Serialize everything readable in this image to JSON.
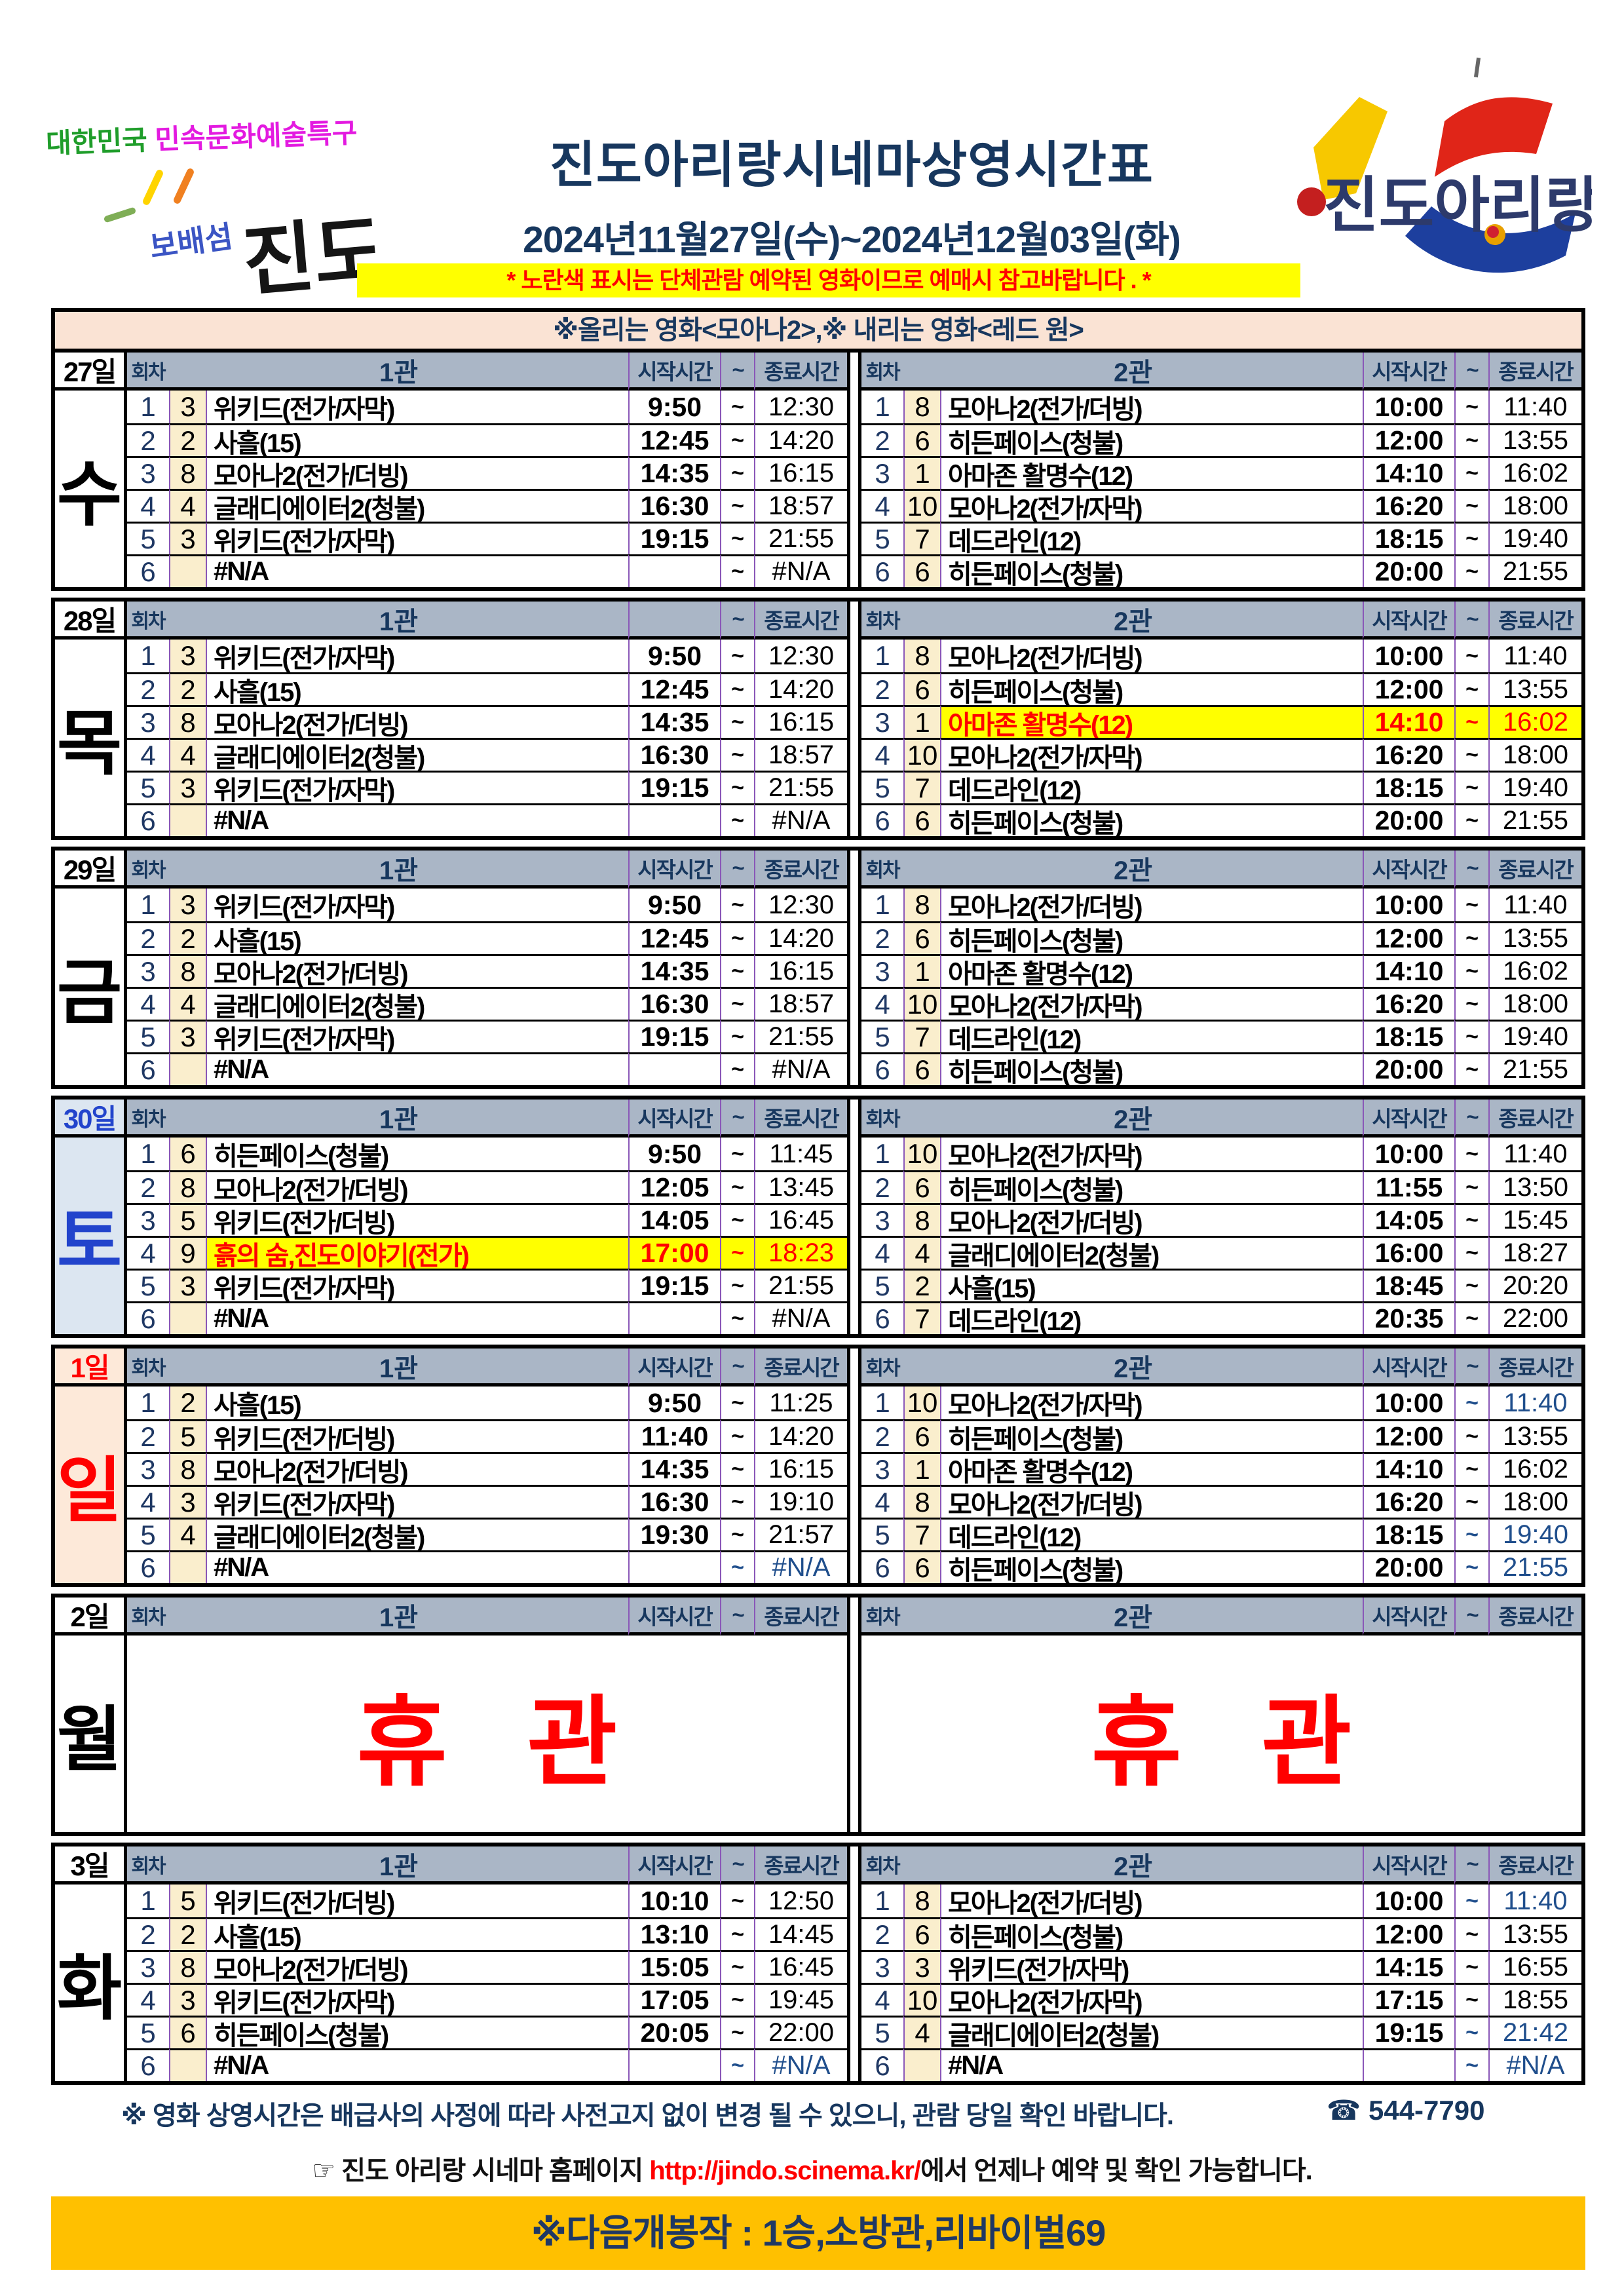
{
  "header": {
    "logo_left": {
      "line1_a": "대한민국",
      "line1_b": "민속문화예술특구",
      "line2_a": "보배섬",
      "line2_b": "진도"
    },
    "title": "진도아리랑시네마상영시간표",
    "date_range": "2024년11월27일(수)~2024년12월03일(화)",
    "notice": "* 노란색 표시는 단체관람 예약된 영화이므로 예매시 참고바랍니다 . *",
    "logo_right_text": "진도아리랑"
  },
  "banner": "※올리는 영화<모아나2>,※ 내리는 영화<레드 원>",
  "columns": {
    "session": "회차",
    "screen1": "1관",
    "screen2": "2관",
    "start": "시작시간",
    "tilde": "~",
    "end": "종료시간"
  },
  "colors": {
    "header_band": "#aab6c6",
    "navy": "#17375e",
    "highlight_bg": "#ffff00",
    "highlight_text": "#ff0000",
    "count_col_bg": "#faeecd",
    "saturday_bg": "#dce6f1",
    "saturday_text": "#2244cc",
    "sunday_bg": "#fde9d9",
    "sunday_text": "#ff0000",
    "banner_bg": "#fae3d4",
    "orange_band_bg": "#ffc000",
    "grid_purple": "#8a57b8",
    "url_red": "#ff0000",
    "blue_time": "#1f4e8c"
  },
  "days": [
    {
      "date": "27일",
      "weekday": "수",
      "color": "#000000",
      "bg": "#ffffff",
      "start_label_1": "시작시간",
      "start_label_2": "시작시간",
      "screen1": [
        {
          "no": "1",
          "cnt": "3",
          "title": "위키드(전가/자막)",
          "start": "9:50",
          "end": "12:30"
        },
        {
          "no": "2",
          "cnt": "2",
          "title": "사흘(15)",
          "start": "12:45",
          "end": "14:20"
        },
        {
          "no": "3",
          "cnt": "8",
          "title": "모아나2(전가/더빙)",
          "start": "14:35",
          "end": "16:15"
        },
        {
          "no": "4",
          "cnt": "4",
          "title": "글래디에이터2(청불)",
          "start": "16:30",
          "end": "18:57"
        },
        {
          "no": "5",
          "cnt": "3",
          "title": "위키드(전가/자막)",
          "start": "19:15",
          "end": "21:55"
        },
        {
          "no": "6",
          "cnt": "",
          "title": "#N/A",
          "start": "",
          "end": "#N/A"
        }
      ],
      "screen2": [
        {
          "no": "1",
          "cnt": "8",
          "title": "모아나2(전가/더빙)",
          "start": "10:00",
          "end": "11:40"
        },
        {
          "no": "2",
          "cnt": "6",
          "title": "히든페이스(청불)",
          "start": "12:00",
          "end": "13:55"
        },
        {
          "no": "3",
          "cnt": "1",
          "title": "아마존 활명수(12)",
          "start": "14:10",
          "end": "16:02"
        },
        {
          "no": "4",
          "cnt": "10",
          "title": "모아나2(전가/자막)",
          "start": "16:20",
          "end": "18:00"
        },
        {
          "no": "5",
          "cnt": "7",
          "title": "데드라인(12)",
          "start": "18:15",
          "end": "19:40"
        },
        {
          "no": "6",
          "cnt": "6",
          "title": "히든페이스(청불)",
          "start": "20:00",
          "end": "21:55"
        }
      ]
    },
    {
      "date": "28일",
      "weekday": "목",
      "color": "#000000",
      "bg": "#ffffff",
      "start_label_1": "",
      "start_label_2": "시작시간",
      "screen1": [
        {
          "no": "1",
          "cnt": "3",
          "title": "위키드(전가/자막)",
          "start": "9:50",
          "end": "12:30"
        },
        {
          "no": "2",
          "cnt": "2",
          "title": "사흘(15)",
          "start": "12:45",
          "end": "14:20"
        },
        {
          "no": "3",
          "cnt": "8",
          "title": "모아나2(전가/더빙)",
          "start": "14:35",
          "end": "16:15"
        },
        {
          "no": "4",
          "cnt": "4",
          "title": "글래디에이터2(청불)",
          "start": "16:30",
          "end": "18:57"
        },
        {
          "no": "5",
          "cnt": "3",
          "title": "위키드(전가/자막)",
          "start": "19:15",
          "end": "21:55"
        },
        {
          "no": "6",
          "cnt": "",
          "title": "#N/A",
          "start": "",
          "end": "#N/A"
        }
      ],
      "screen2": [
        {
          "no": "1",
          "cnt": "8",
          "title": "모아나2(전가/더빙)",
          "start": "10:00",
          "end": "11:40"
        },
        {
          "no": "2",
          "cnt": "6",
          "title": "히든페이스(청불)",
          "start": "12:00",
          "end": "13:55"
        },
        {
          "no": "3",
          "cnt": "1",
          "title": "아마존 활명수(12)",
          "start": "14:10",
          "end": "16:02",
          "hl": true
        },
        {
          "no": "4",
          "cnt": "10",
          "title": "모아나2(전가/자막)",
          "start": "16:20",
          "end": "18:00"
        },
        {
          "no": "5",
          "cnt": "7",
          "title": "데드라인(12)",
          "start": "18:15",
          "end": "19:40"
        },
        {
          "no": "6",
          "cnt": "6",
          "title": "히든페이스(청불)",
          "start": "20:00",
          "end": "21:55"
        }
      ]
    },
    {
      "date": "29일",
      "weekday": "금",
      "color": "#000000",
      "bg": "#ffffff",
      "start_label_1": "시작시간",
      "start_label_2": "시작시간",
      "screen1": [
        {
          "no": "1",
          "cnt": "3",
          "title": "위키드(전가/자막)",
          "start": "9:50",
          "end": "12:30"
        },
        {
          "no": "2",
          "cnt": "2",
          "title": "사흘(15)",
          "start": "12:45",
          "end": "14:20"
        },
        {
          "no": "3",
          "cnt": "8",
          "title": "모아나2(전가/더빙)",
          "start": "14:35",
          "end": "16:15"
        },
        {
          "no": "4",
          "cnt": "4",
          "title": "글래디에이터2(청불)",
          "start": "16:30",
          "end": "18:57"
        },
        {
          "no": "5",
          "cnt": "3",
          "title": "위키드(전가/자막)",
          "start": "19:15",
          "end": "21:55"
        },
        {
          "no": "6",
          "cnt": "",
          "title": "#N/A",
          "start": "",
          "end": "#N/A"
        }
      ],
      "screen2": [
        {
          "no": "1",
          "cnt": "8",
          "title": "모아나2(전가/더빙)",
          "start": "10:00",
          "end": "11:40"
        },
        {
          "no": "2",
          "cnt": "6",
          "title": "히든페이스(청불)",
          "start": "12:00",
          "end": "13:55"
        },
        {
          "no": "3",
          "cnt": "1",
          "title": "아마존 활명수(12)",
          "start": "14:10",
          "end": "16:02"
        },
        {
          "no": "4",
          "cnt": "10",
          "title": "모아나2(전가/자막)",
          "start": "16:20",
          "end": "18:00"
        },
        {
          "no": "5",
          "cnt": "7",
          "title": "데드라인(12)",
          "start": "18:15",
          "end": "19:40"
        },
        {
          "no": "6",
          "cnt": "6",
          "title": "히든페이스(청불)",
          "start": "20:00",
          "end": "21:55"
        }
      ]
    },
    {
      "date": "30일",
      "weekday": "토",
      "color": "#2244cc",
      "bg": "#dce6f1",
      "start_label_1": "시작시간",
      "start_label_2": "시작시간",
      "screen1": [
        {
          "no": "1",
          "cnt": "6",
          "title": "히든페이스(청불)",
          "start": "9:50",
          "end": "11:45"
        },
        {
          "no": "2",
          "cnt": "8",
          "title": "모아나2(전가/더빙)",
          "start": "12:05",
          "end": "13:45"
        },
        {
          "no": "3",
          "cnt": "5",
          "title": "위키드(전가/더빙)",
          "start": "14:05",
          "end": "16:45"
        },
        {
          "no": "4",
          "cnt": "9",
          "title": "흙의 숨,진도이야기(전가)",
          "start": "17:00",
          "end": "18:23",
          "hl": true
        },
        {
          "no": "5",
          "cnt": "3",
          "title": "위키드(전가/자막)",
          "start": "19:15",
          "end": "21:55"
        },
        {
          "no": "6",
          "cnt": "",
          "title": "#N/A",
          "start": "",
          "end": "#N/A"
        }
      ],
      "screen2": [
        {
          "no": "1",
          "cnt": "10",
          "title": "모아나2(전가/자막)",
          "start": "10:00",
          "end": "11:40"
        },
        {
          "no": "2",
          "cnt": "6",
          "title": "히든페이스(청불)",
          "start": "11:55",
          "end": "13:50"
        },
        {
          "no": "3",
          "cnt": "8",
          "title": "모아나2(전가/더빙)",
          "start": "14:05",
          "end": "15:45"
        },
        {
          "no": "4",
          "cnt": "4",
          "title": "글래디에이터2(청불)",
          "start": "16:00",
          "end": "18:27"
        },
        {
          "no": "5",
          "cnt": "2",
          "title": "사흘(15)",
          "start": "18:45",
          "end": "20:20"
        },
        {
          "no": "6",
          "cnt": "7",
          "title": "데드라인(12)",
          "start": "20:35",
          "end": "22:00"
        }
      ]
    },
    {
      "date": "1일",
      "weekday": "일",
      "color": "#ff0000",
      "bg": "#fde9d9",
      "start_label_1": "시작시간",
      "start_label_2": "시작시간",
      "screen1": [
        {
          "no": "1",
          "cnt": "2",
          "title": "사흘(15)",
          "start": "9:50",
          "end": "11:25"
        },
        {
          "no": "2",
          "cnt": "5",
          "title": "위키드(전가/더빙)",
          "start": "11:40",
          "end": "14:20"
        },
        {
          "no": "3",
          "cnt": "8",
          "title": "모아나2(전가/더빙)",
          "start": "14:35",
          "end": "16:15"
        },
        {
          "no": "4",
          "cnt": "3",
          "title": "위키드(전가/자막)",
          "start": "16:30",
          "end": "19:10"
        },
        {
          "no": "5",
          "cnt": "4",
          "title": "글래디에이터2(청불)",
          "start": "19:30",
          "end": "21:57"
        },
        {
          "no": "6",
          "cnt": "",
          "title": "#N/A",
          "start": "",
          "end": "#N/A",
          "blue": true
        }
      ],
      "screen2": [
        {
          "no": "1",
          "cnt": "10",
          "title": "모아나2(전가/자막)",
          "start": "10:00",
          "end": "11:40",
          "blue": true
        },
        {
          "no": "2",
          "cnt": "6",
          "title": "히든페이스(청불)",
          "start": "12:00",
          "end": "13:55"
        },
        {
          "no": "3",
          "cnt": "1",
          "title": "아마존 활명수(12)",
          "start": "14:10",
          "end": "16:02"
        },
        {
          "no": "4",
          "cnt": "8",
          "title": "모아나2(전가/더빙)",
          "start": "16:20",
          "end": "18:00"
        },
        {
          "no": "5",
          "cnt": "7",
          "title": "데드라인(12)",
          "start": "18:15",
          "end": "19:40",
          "blue": true
        },
        {
          "no": "6",
          "cnt": "6",
          "title": "히든페이스(청불)",
          "start": "20:00",
          "end": "21:55",
          "blue": true
        }
      ]
    },
    {
      "date": "2일",
      "weekday": "월",
      "color": "#000000",
      "bg": "#ffffff",
      "start_label_1": "시작시간",
      "start_label_2": "시작시간",
      "closed": true,
      "closed_label": "휴 관"
    },
    {
      "date": "3일",
      "weekday": "화",
      "color": "#000000",
      "bg": "#ffffff",
      "start_label_1": "시작시간",
      "start_label_2": "시작시간",
      "screen1": [
        {
          "no": "1",
          "cnt": "5",
          "title": "위키드(전가/더빙)",
          "start": "10:10",
          "end": "12:50"
        },
        {
          "no": "2",
          "cnt": "2",
          "title": "사흘(15)",
          "start": "13:10",
          "end": "14:45"
        },
        {
          "no": "3",
          "cnt": "8",
          "title": "모아나2(전가/더빙)",
          "start": "15:05",
          "end": "16:45"
        },
        {
          "no": "4",
          "cnt": "3",
          "title": "위키드(전가/자막)",
          "start": "17:05",
          "end": "19:45"
        },
        {
          "no": "5",
          "cnt": "6",
          "title": "히든페이스(청불)",
          "start": "20:05",
          "end": "22:00"
        },
        {
          "no": "6",
          "cnt": "",
          "title": "#N/A",
          "start": "",
          "end": "#N/A",
          "blue": true
        }
      ],
      "screen2": [
        {
          "no": "1",
          "cnt": "8",
          "title": "모아나2(전가/더빙)",
          "start": "10:00",
          "end": "11:40",
          "blue": true
        },
        {
          "no": "2",
          "cnt": "6",
          "title": "히든페이스(청불)",
          "start": "12:00",
          "end": "13:55"
        },
        {
          "no": "3",
          "cnt": "3",
          "title": "위키드(전가/자막)",
          "start": "14:15",
          "end": "16:55"
        },
        {
          "no": "4",
          "cnt": "10",
          "title": "모아나2(전가/자막)",
          "start": "17:15",
          "end": "18:55"
        },
        {
          "no": "5",
          "cnt": "4",
          "title": "글래디에이터2(청불)",
          "start": "19:15",
          "end": "21:42",
          "blue": true
        },
        {
          "no": "6",
          "cnt": "",
          "title": "#N/A",
          "start": "",
          "end": "#N/A",
          "blue": true
        }
      ]
    }
  ],
  "footer": {
    "notice": "※ 영화 상영시간은 배급사의 사정에 따라 사전고지 없이 변경 될 수 있으니, 관람 당일 확인 바랍니다.",
    "phone": "☎ 544-7790",
    "home_prefix": "☞ 진도 아리랑 시네마 홈페이지 ",
    "home_url": "http://jindo.scinema.kr/",
    "home_suffix": "에서 언제나 예약 및 확인 가능합니다.",
    "next_release": "※다음개봉작 : 1승,소방관,리바이벌69"
  }
}
